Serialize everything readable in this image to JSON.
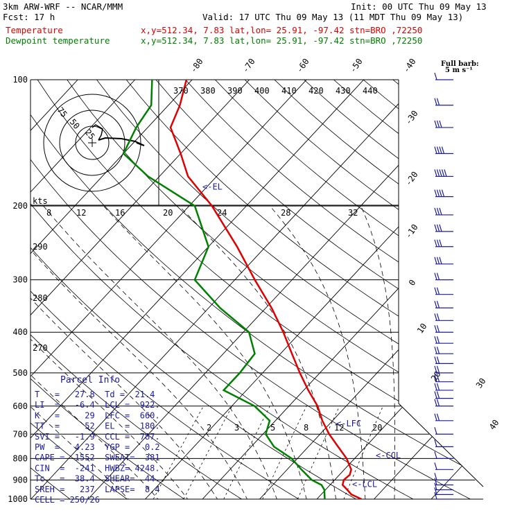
{
  "header": {
    "model": "3km ARW-WRF -- NCAR/MMM",
    "init": "Init: 00 UTC Thu 09 May 13",
    "fcst": "Fcst:    17 h",
    "valid": "Valid: 17 UTC Thu 09 May 13 (11 MDT Thu 09 May 13)",
    "temp_label": "Temperature",
    "temp_info": "x,y=512.34,  7.83   lat,lon= 25.91, -97.42  stn=BRO ,72250",
    "dew_label": "Dewpoint temperature",
    "dew_info": "x,y=512.34,  7.83   lat,lon= 25.91, -97.42  stn=BRO ,72250",
    "full_barb": "Full barb:",
    "full_barb_speed": "5 m s⁻¹"
  },
  "colors": {
    "temperature": "#e00000",
    "dewpoint": "#008000",
    "parcel_text": "#1a1aa0",
    "barbs": "#1a1aa0"
  },
  "chart_data": {
    "type": "line",
    "subtype": "skew-T log-P sounding",
    "pressure_levels": [
      100,
      200,
      300,
      400,
      500,
      600,
      700,
      800,
      900,
      1000
    ],
    "skewed_temperature_labels": [
      "-80",
      "-70",
      "-60",
      "-50",
      "-40",
      "-30",
      "-20",
      "-10",
      "0",
      "10",
      "20",
      "30",
      "40"
    ],
    "potential_temperature_labels": [
      "370",
      "380",
      "390",
      "400",
      "410",
      "420",
      "430",
      "440"
    ],
    "isentrope_labels": [
      "290",
      "280",
      "270"
    ],
    "mixing_ratio_labels": [
      "2",
      "3",
      "5",
      "8",
      "12",
      "20"
    ],
    "series": [
      {
        "name": "Temperature",
        "color": "#e00000",
        "points": [
          {
            "p": 1000,
            "t": 27.8
          },
          {
            "p": 975,
            "t": 25.3
          },
          {
            "p": 950,
            "t": 23.8
          },
          {
            "p": 925,
            "t": 22.2
          },
          {
            "p": 900,
            "t": 21.6
          },
          {
            "p": 875,
            "t": 21.8
          },
          {
            "p": 850,
            "t": 21.2
          },
          {
            "p": 800,
            "t": 18.6
          },
          {
            "p": 750,
            "t": 15.2
          },
          {
            "p": 700,
            "t": 11.6
          },
          {
            "p": 650,
            "t": 8.2
          },
          {
            "p": 600,
            "t": 5.0
          },
          {
            "p": 550,
            "t": 0.8
          },
          {
            "p": 500,
            "t": -3.5
          },
          {
            "p": 450,
            "t": -8.0
          },
          {
            "p": 400,
            "t": -13.0
          },
          {
            "p": 350,
            "t": -19.0
          },
          {
            "p": 300,
            "t": -26.5
          },
          {
            "p": 250,
            "t": -35.0
          },
          {
            "p": 200,
            "t": -46.0
          },
          {
            "p": 170,
            "t": -55.0
          },
          {
            "p": 150,
            "t": -60.0
          },
          {
            "p": 130,
            "t": -66.0
          },
          {
            "p": 115,
            "t": -68.0
          },
          {
            "p": 100,
            "t": -71.0
          }
        ]
      },
      {
        "name": "Dewpoint temperature",
        "color": "#008000",
        "points": [
          {
            "p": 1000,
            "t": 21.4
          },
          {
            "p": 975,
            "t": 20.6
          },
          {
            "p": 950,
            "t": 19.8
          },
          {
            "p": 925,
            "t": 18.5
          },
          {
            "p": 900,
            "t": 16.0
          },
          {
            "p": 850,
            "t": 12.5
          },
          {
            "p": 800,
            "t": 9.0
          },
          {
            "p": 750,
            "t": 4.0
          },
          {
            "p": 700,
            "t": 0.5
          },
          {
            "p": 650,
            "t": -1.0
          },
          {
            "p": 600,
            "t": -6.0
          },
          {
            "p": 550,
            "t": -14.0
          },
          {
            "p": 500,
            "t": -14.0
          },
          {
            "p": 450,
            "t": -14.5
          },
          {
            "p": 400,
            "t": -19.0
          },
          {
            "p": 350,
            "t": -28.0
          },
          {
            "p": 300,
            "t": -37.0
          },
          {
            "p": 250,
            "t": -40.0
          },
          {
            "p": 200,
            "t": -49.0
          },
          {
            "p": 170,
            "t": -62.0
          },
          {
            "p": 150,
            "t": -70.0
          },
          {
            "p": 130,
            "t": -72.0
          },
          {
            "p": 115,
            "t": -73.0
          },
          {
            "p": 100,
            "t": -77.0
          }
        ]
      }
    ],
    "level_markers": [
      {
        "label": "<-EL",
        "p": 180
      },
      {
        "label": "<-LFC",
        "p": 660
      },
      {
        "label": "<-CCL",
        "p": 787
      },
      {
        "label": "<-LCL",
        "p": 922
      }
    ],
    "hodograph": {
      "units_label": "kts",
      "ring_labels": [
        "25",
        "50",
        "75"
      ],
      "speed_axis_labels": [
        "8",
        "12",
        "16",
        "20",
        "24",
        "28",
        "32"
      ]
    },
    "wind_barbs": {
      "pressure_levels": [
        100,
        115,
        130,
        150,
        170,
        190,
        210,
        230,
        250,
        275,
        300,
        325,
        350,
        375,
        400,
        425,
        450,
        475,
        500,
        525,
        550,
        575,
        600,
        650,
        700,
        750,
        800,
        850,
        900,
        925,
        950,
        975,
        1000
      ],
      "speed_ms": [
        5,
        10,
        15,
        20,
        25,
        20,
        15,
        15,
        15,
        15,
        10,
        10,
        10,
        10,
        10,
        10,
        10,
        10,
        10,
        10,
        10,
        10,
        10,
        10,
        5,
        5,
        5,
        5,
        5,
        5,
        5,
        5,
        5
      ]
    }
  },
  "parcel_info": {
    "title": "Parcel Info",
    "rows": [
      "T   =   27.8  Td =  21.4",
      "LI  =   -6.4  LCL =  922.",
      "K   =     29  LFC =  660.",
      "TT  =     52  EL  =  180.",
      "SVI =   -1.9  CCL =  787.",
      "PW  =   4.23  YGP =   0.2",
      "CAPE =  1552  SWEAT=  381",
      "CIN  =  -241  HWBZ= 4248.",
      "Tc   =  38.4  SHEAR=  44.",
      "SREH =   237  LAPSE=  8.4",
      "CELL = 250/26"
    ]
  }
}
